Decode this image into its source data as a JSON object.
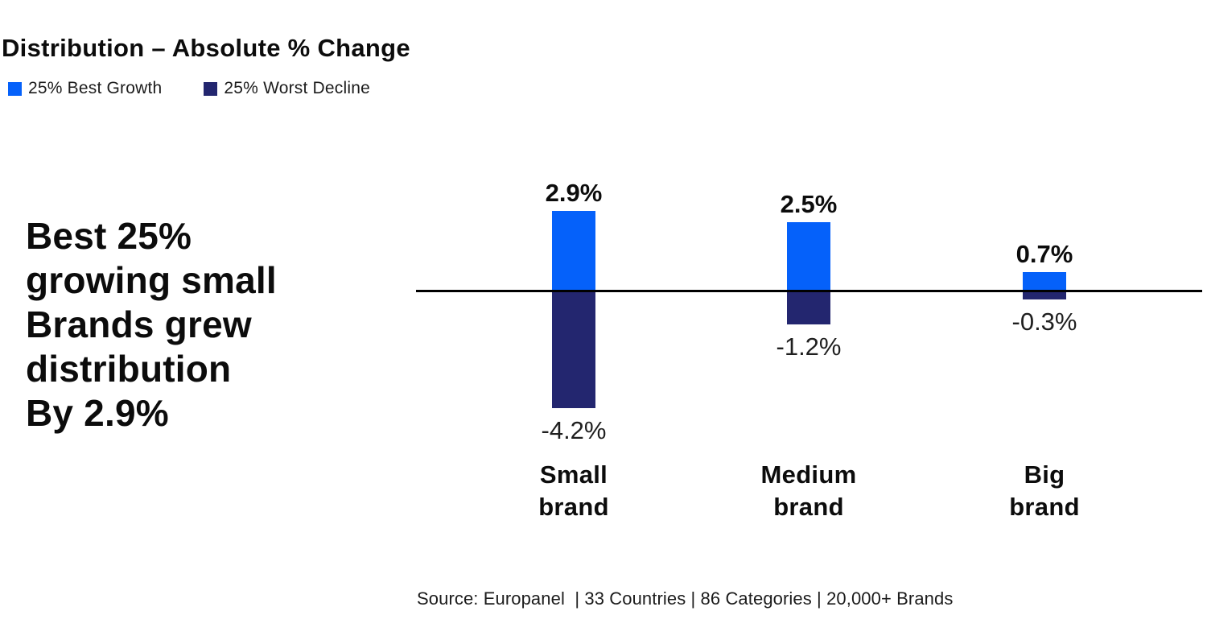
{
  "title": "Distribution – Absolute % Change",
  "legend": {
    "items": [
      {
        "label": "25% Best Growth",
        "color": "#0561fa"
      },
      {
        "label": "25% Worst Decline",
        "color": "#23266f"
      }
    ]
  },
  "annotation": "Best 25%\ngrowing small\nBrands grew\ndistribution\nBy 2.9%",
  "source": "Source: Europanel  | 33 Countries | 86 Categories | 20,000+ Brands",
  "chart_data": {
    "type": "bar",
    "title": "Distribution – Absolute % Change",
    "categories": [
      "Small\nbrand",
      "Medium\nbrand",
      "Big\nbrand"
    ],
    "series": [
      {
        "name": "25% Best Growth",
        "color": "#0561fa",
        "values": [
          2.9,
          2.5,
          0.7
        ],
        "labels": [
          "2.9%",
          "2.5%",
          "0.7%"
        ]
      },
      {
        "name": "25% Worst Decline",
        "color": "#23266f",
        "values": [
          -4.2,
          -1.2,
          -0.3
        ],
        "labels": [
          "-4.2%",
          "-1.2%",
          "-0.3%"
        ]
      }
    ],
    "ylim": [
      -4.6,
      3.2
    ],
    "grid": false,
    "legend_position": "top-left",
    "baseline": 0,
    "unit": "%"
  }
}
